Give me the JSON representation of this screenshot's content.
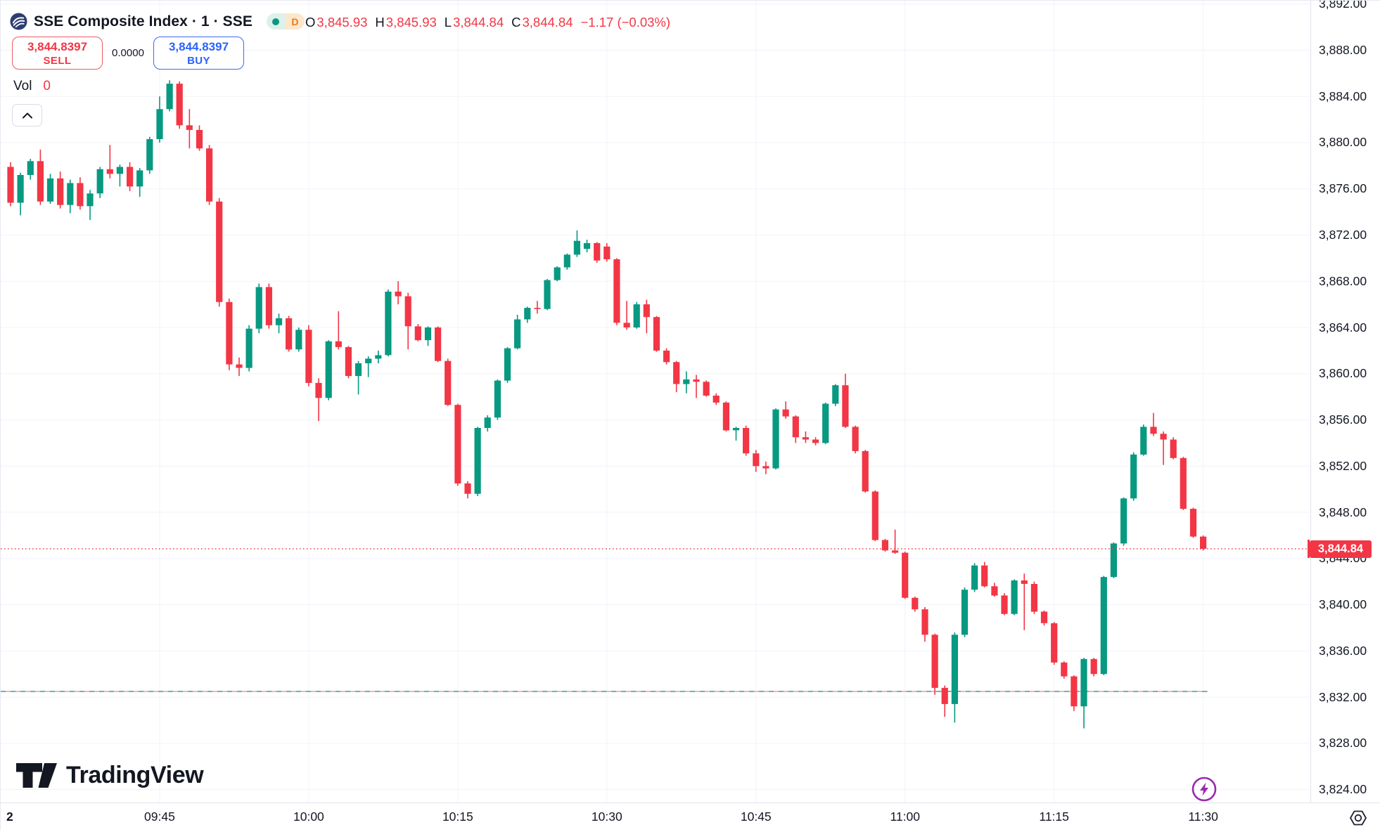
{
  "header": {
    "title": "SSE Composite Index · 1 · SSE",
    "market_status_icon": "green-dot",
    "interval_badge": "D",
    "ohlc": {
      "open_label": "O",
      "open": "3,845.93",
      "high_label": "H",
      "high": "3,845.93",
      "low_label": "L",
      "low": "3,844.84",
      "close_label": "C",
      "close": "3,844.84",
      "change": "−1.17 (−0.03%)"
    }
  },
  "trade_panel": {
    "sell_price": "3,844.8397",
    "sell_label": "SELL",
    "spread": "0.0000",
    "buy_price": "3,844.8397",
    "buy_label": "BUY"
  },
  "volume_row": {
    "label": "Vol",
    "value": "0"
  },
  "footer": {
    "brand": "TradingView"
  },
  "price_axis": {
    "last_price_label": "3,844.84",
    "labels": [
      {
        "text": "3,892.00",
        "value": 3892
      },
      {
        "text": "3,888.00",
        "value": 3888
      },
      {
        "text": "3,884.00",
        "value": 3884
      },
      {
        "text": "3,880.00",
        "value": 3880
      },
      {
        "text": "3,876.00",
        "value": 3876
      },
      {
        "text": "3,872.00",
        "value": 3872
      },
      {
        "text": "3,868.00",
        "value": 3868
      },
      {
        "text": "3,864.00",
        "value": 3864
      },
      {
        "text": "3,860.00",
        "value": 3860
      },
      {
        "text": "3,856.00",
        "value": 3856
      },
      {
        "text": "3,852.00",
        "value": 3852
      },
      {
        "text": "3,848.00",
        "value": 3848
      },
      {
        "text": "3,844.00",
        "value": 3844
      },
      {
        "text": "3,840.00",
        "value": 3840
      },
      {
        "text": "3,836.00",
        "value": 3836
      },
      {
        "text": "3,832.00",
        "value": 3832
      },
      {
        "text": "3,828.00",
        "value": 3828
      },
      {
        "text": "3,824.00",
        "value": 3824
      }
    ]
  },
  "time_axis": {
    "labels": [
      {
        "text": "2",
        "index": 0,
        "bold": true
      },
      {
        "text": "09:45",
        "index": 15
      },
      {
        "text": "10:00",
        "index": 30
      },
      {
        "text": "10:15",
        "index": 45
      },
      {
        "text": "10:30",
        "index": 60
      },
      {
        "text": "10:45",
        "index": 75
      },
      {
        "text": "11:00",
        "index": 90
      },
      {
        "text": "11:15",
        "index": 105
      },
      {
        "text": "11:30",
        "index": 120
      }
    ]
  },
  "colors": {
    "up": "#089981",
    "down": "#f23645",
    "accent_blue": "#2962ff",
    "text": "#131722",
    "grid": "#f0f3fa",
    "axis_border": "#e0e3eb",
    "purple": "#9c27b0",
    "baseline_teal": "#45a893",
    "baseline_red": "#f5a0a5",
    "logo_navy": "#2c3e70"
  },
  "chart_data": {
    "type": "candlestick",
    "title": "SSE Composite Index, 1-minute, SSE",
    "symbol": "SSE Composite Index",
    "interval": "1",
    "exchange": "SSE",
    "session_start_marker": "2",
    "x_time_range": [
      "09:30",
      "11:30"
    ],
    "ylim": [
      3822.9,
      3892.3
    ],
    "price_gridline_step": 4,
    "grid": true,
    "last_price": 3844.84,
    "baseline_price": 3832.5,
    "ohlc_current": {
      "open": 3845.93,
      "high": 3845.93,
      "low": 3844.84,
      "close": 3844.84,
      "change": -1.17,
      "change_pct": -0.03
    },
    "candles": [
      [
        3877.9,
        3878.3,
        3874.5,
        3874.8
      ],
      [
        3874.8,
        3877.4,
        3873.7,
        3877.2
      ],
      [
        3877.2,
        3878.6,
        3876.8,
        3878.4
      ],
      [
        3878.4,
        3879.4,
        3874.6,
        3874.9
      ],
      [
        3874.9,
        3877.3,
        3874.7,
        3876.9
      ],
      [
        3876.9,
        3877.5,
        3874.3,
        3874.6
      ],
      [
        3874.6,
        3876.8,
        3873.9,
        3876.5
      ],
      [
        3876.5,
        3877.0,
        3874.2,
        3874.5
      ],
      [
        3874.5,
        3875.9,
        3873.3,
        3875.6
      ],
      [
        3875.6,
        3877.9,
        3875.2,
        3877.7
      ],
      [
        3877.7,
        3879.8,
        3876.9,
        3877.3
      ],
      [
        3877.3,
        3878.1,
        3876.2,
        3877.9
      ],
      [
        3877.9,
        3878.3,
        3875.8,
        3876.2
      ],
      [
        3876.2,
        3877.8,
        3875.3,
        3877.6
      ],
      [
        3877.6,
        3880.5,
        3877.3,
        3880.3
      ],
      [
        3880.3,
        3884.0,
        3880.0,
        3882.9
      ],
      [
        3882.9,
        3885.4,
        3882.7,
        3885.1
      ],
      [
        3885.1,
        3885.3,
        3881.2,
        3881.5
      ],
      [
        3881.5,
        3882.9,
        3879.5,
        3881.1
      ],
      [
        3881.1,
        3881.5,
        3879.3,
        3879.5
      ],
      [
        3879.5,
        3879.8,
        3874.6,
        3874.9
      ],
      [
        3874.9,
        3875.2,
        3865.8,
        3866.2
      ],
      [
        3866.2,
        3866.5,
        3860.3,
        3860.8
      ],
      [
        3860.8,
        3861.4,
        3859.8,
        3860.5
      ],
      [
        3860.5,
        3864.2,
        3860.2,
        3863.9
      ],
      [
        3863.9,
        3867.8,
        3863.5,
        3867.5
      ],
      [
        3867.5,
        3867.8,
        3863.9,
        3864.2
      ],
      [
        3864.2,
        3865.2,
        3863.5,
        3864.8
      ],
      [
        3864.8,
        3865.0,
        3861.9,
        3862.1
      ],
      [
        3862.1,
        3864.0,
        3861.9,
        3863.8
      ],
      [
        3863.8,
        3864.2,
        3858.9,
        3859.2
      ],
      [
        3859.2,
        3859.6,
        3855.9,
        3857.9
      ],
      [
        3857.9,
        3862.9,
        3857.7,
        3862.8
      ],
      [
        3862.8,
        3865.4,
        3862.1,
        3862.3
      ],
      [
        3862.3,
        3862.4,
        3859.6,
        3859.8
      ],
      [
        3859.8,
        3861.1,
        3858.2,
        3860.9
      ],
      [
        3860.9,
        3861.5,
        3859.7,
        3861.3
      ],
      [
        3861.3,
        3862.0,
        3860.9,
        3861.6
      ],
      [
        3861.6,
        3867.3,
        3861.5,
        3867.1
      ],
      [
        3867.1,
        3868.0,
        3866.0,
        3866.7
      ],
      [
        3866.7,
        3867.0,
        3862.1,
        3864.1
      ],
      [
        3864.1,
        3864.3,
        3862.8,
        3862.9
      ],
      [
        3862.9,
        3864.1,
        3862.4,
        3864.0
      ],
      [
        3864.0,
        3864.1,
        3861.0,
        3861.1
      ],
      [
        3861.1,
        3861.3,
        3857.2,
        3857.3
      ],
      [
        3857.3,
        3857.4,
        3850.3,
        3850.5
      ],
      [
        3850.5,
        3850.7,
        3849.2,
        3849.6
      ],
      [
        3849.6,
        3855.4,
        3849.4,
        3855.3
      ],
      [
        3855.3,
        3856.4,
        3855.0,
        3856.2
      ],
      [
        3856.2,
        3859.5,
        3856.0,
        3859.4
      ],
      [
        3859.4,
        3862.3,
        3859.2,
        3862.2
      ],
      [
        3862.2,
        3865.1,
        3862.1,
        3864.7
      ],
      [
        3864.7,
        3865.8,
        3864.4,
        3865.7
      ],
      [
        3865.7,
        3866.3,
        3865.2,
        3865.6
      ],
      [
        3865.6,
        3868.2,
        3865.5,
        3868.1
      ],
      [
        3868.1,
        3869.3,
        3868.0,
        3869.2
      ],
      [
        3869.2,
        3870.4,
        3869.0,
        3870.3
      ],
      [
        3870.3,
        3872.4,
        3870.1,
        3871.5
      ],
      [
        3870.8,
        3871.6,
        3870.5,
        3871.3
      ],
      [
        3871.3,
        3871.4,
        3869.6,
        3869.8
      ],
      [
        3871.0,
        3871.3,
        3869.7,
        3869.9
      ],
      [
        3869.9,
        3870.0,
        3864.2,
        3864.4
      ],
      [
        3864.4,
        3866.3,
        3863.8,
        3864.0
      ],
      [
        3864.0,
        3866.2,
        3863.9,
        3866.0
      ],
      [
        3866.0,
        3866.4,
        3863.5,
        3864.9
      ],
      [
        3864.9,
        3865.0,
        3861.9,
        3862.0
      ],
      [
        3862.0,
        3862.2,
        3860.8,
        3861.0
      ],
      [
        3861.0,
        3861.1,
        3858.4,
        3859.1
      ],
      [
        3859.1,
        3860.2,
        3858.3,
        3859.5
      ],
      [
        3859.5,
        3859.9,
        3857.9,
        3859.3
      ],
      [
        3859.3,
        3859.4,
        3858.0,
        3858.1
      ],
      [
        3858.1,
        3858.3,
        3857.3,
        3857.5
      ],
      [
        3857.5,
        3857.6,
        3855.0,
        3855.1
      ],
      [
        3855.1,
        3855.4,
        3854.2,
        3855.3
      ],
      [
        3855.3,
        3855.5,
        3852.9,
        3853.1
      ],
      [
        3853.1,
        3853.4,
        3851.5,
        3852.0
      ],
      [
        3852.0,
        3852.4,
        3851.3,
        3851.8
      ],
      [
        3851.8,
        3857.0,
        3851.7,
        3856.9
      ],
      [
        3856.9,
        3857.6,
        3856.1,
        3856.3
      ],
      [
        3856.3,
        3856.4,
        3854.0,
        3854.5
      ],
      [
        3854.5,
        3855.0,
        3854.0,
        3854.3
      ],
      [
        3854.3,
        3854.5,
        3853.8,
        3854.0
      ],
      [
        3854.0,
        3857.5,
        3853.9,
        3857.4
      ],
      [
        3857.4,
        3859.1,
        3857.2,
        3859.0
      ],
      [
        3859.0,
        3860.0,
        3855.3,
        3855.4
      ],
      [
        3855.4,
        3855.5,
        3853.1,
        3853.3
      ],
      [
        3853.3,
        3853.4,
        3849.7,
        3849.8
      ],
      [
        3849.8,
        3849.9,
        3845.5,
        3845.6
      ],
      [
        3845.6,
        3845.7,
        3844.6,
        3844.7
      ],
      [
        3844.7,
        3846.5,
        3844.4,
        3844.5
      ],
      [
        3844.5,
        3844.6,
        3840.5,
        3840.6
      ],
      [
        3840.6,
        3840.7,
        3839.4,
        3839.6
      ],
      [
        3839.6,
        3839.8,
        3836.8,
        3837.4
      ],
      [
        3837.4,
        3837.5,
        3832.2,
        3832.8
      ],
      [
        3832.8,
        3833.0,
        3830.3,
        3831.4
      ],
      [
        3831.4,
        3837.6,
        3829.8,
        3837.4
      ],
      [
        3837.4,
        3841.5,
        3837.2,
        3841.3
      ],
      [
        3841.3,
        3843.6,
        3841.1,
        3843.4
      ],
      [
        3843.4,
        3843.7,
        3841.5,
        3841.6
      ],
      [
        3841.6,
        3841.9,
        3840.7,
        3840.8
      ],
      [
        3840.8,
        3841.0,
        3839.1,
        3839.2
      ],
      [
        3839.2,
        3842.2,
        3839.1,
        3842.1
      ],
      [
        3842.1,
        3842.7,
        3837.8,
        3841.8
      ],
      [
        3841.8,
        3842.0,
        3839.2,
        3839.4
      ],
      [
        3839.4,
        3839.5,
        3838.2,
        3838.4
      ],
      [
        3838.4,
        3838.5,
        3834.8,
        3835.0
      ],
      [
        3835.0,
        3835.1,
        3833.6,
        3833.8
      ],
      [
        3833.8,
        3833.9,
        3830.8,
        3831.2
      ],
      [
        3831.2,
        3835.4,
        3829.3,
        3835.3
      ],
      [
        3835.3,
        3835.4,
        3833.8,
        3834.0
      ],
      [
        3834.0,
        3842.5,
        3833.9,
        3842.4
      ],
      [
        3842.4,
        3845.4,
        3842.3,
        3845.3
      ],
      [
        3845.3,
        3849.3,
        3845.1,
        3849.2
      ],
      [
        3849.2,
        3853.2,
        3849.0,
        3853.0
      ],
      [
        3853.0,
        3855.6,
        3852.9,
        3855.4
      ],
      [
        3855.4,
        3856.6,
        3854.6,
        3854.8
      ],
      [
        3854.8,
        3855.0,
        3852.1,
        3854.3
      ],
      [
        3854.3,
        3854.5,
        3852.6,
        3852.7
      ],
      [
        3852.7,
        3852.8,
        3848.2,
        3848.3
      ],
      [
        3848.3,
        3848.4,
        3845.8,
        3845.9
      ],
      [
        3845.9,
        3846.0,
        3844.7,
        3844.84
      ]
    ]
  }
}
